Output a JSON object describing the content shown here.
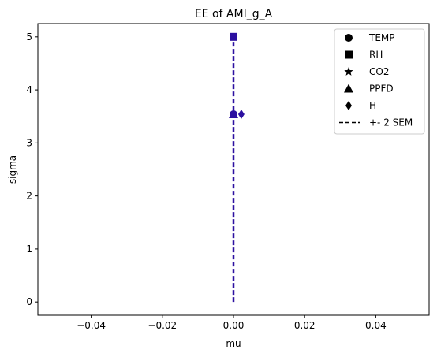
{
  "chart_data": {
    "type": "scatter",
    "title": "EE of AMI_g_A",
    "xlabel": "mu",
    "ylabel": "sigma",
    "xlim": [
      -0.055,
      0.055
    ],
    "ylim": [
      -0.25,
      5.25
    ],
    "x_ticks": [
      -0.04,
      -0.02,
      0.0,
      0.02,
      0.04
    ],
    "x_tick_labels": [
      "−0.04",
      "−0.02",
      "0.00",
      "0.02",
      "0.04"
    ],
    "y_ticks": [
      0,
      1,
      2,
      3,
      4,
      5
    ],
    "y_tick_labels": [
      "0",
      "1",
      "2",
      "3",
      "4",
      "5"
    ],
    "grid": false,
    "legend_position": "top-right",
    "marker_color": "#2c10a0",
    "sem_line": {
      "name": "+- 2 SEM",
      "x": [
        0.0,
        0.0
      ],
      "y": [
        0.0,
        5.0
      ],
      "color": "#2c10a0",
      "style": "dashed"
    },
    "series": [
      {
        "name": "TEMP",
        "marker": "circle",
        "x": 0.0,
        "y": 3.54
      },
      {
        "name": "RH",
        "marker": "square",
        "x": 0.0,
        "y": 5.0
      },
      {
        "name": "CO2",
        "marker": "star",
        "x": 0.0,
        "y": 3.54
      },
      {
        "name": "PPFD",
        "marker": "triangle",
        "x": 0.0,
        "y": 3.54
      },
      {
        "name": "H",
        "marker": "diamond",
        "x": 0.0022,
        "y": 3.54
      }
    ]
  }
}
